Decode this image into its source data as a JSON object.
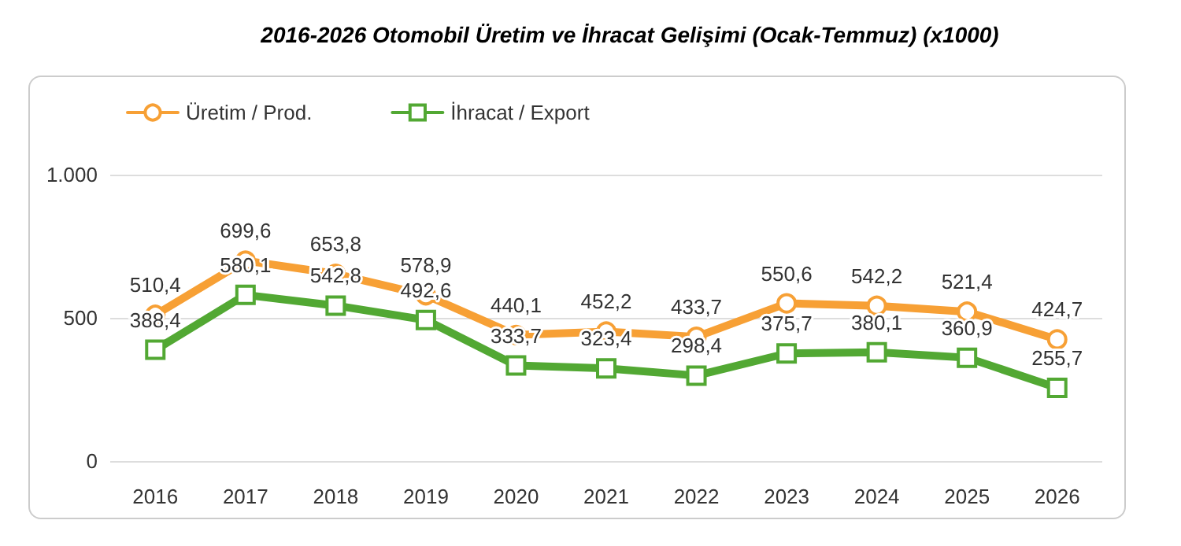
{
  "chart_data": {
    "type": "line",
    "title": "2016-2026 Otomobil Üretim ve İhracat Gelişimi (Ocak-Temmuz) (x1000)",
    "categories": [
      "2016",
      "2017",
      "2018",
      "2019",
      "2020",
      "2021",
      "2022",
      "2023",
      "2024",
      "2025",
      "2026"
    ],
    "series": [
      {
        "name": "Üretim / Prod.",
        "color": "#f7a035",
        "marker": "circle",
        "values": [
          510.4,
          699.6,
          653.8,
          578.9,
          440.1,
          452.2,
          433.7,
          550.6,
          542.2,
          521.4,
          424.7
        ],
        "value_labels": [
          "510,4",
          "699,6",
          "653,8",
          "578,9",
          "440,1",
          "452,2",
          "433,7",
          "550,6",
          "542,2",
          "521,4",
          "424,7"
        ]
      },
      {
        "name": "İhracat / Export",
        "color": "#52a833",
        "marker": "square",
        "values": [
          388.4,
          580.1,
          542.8,
          492.6,
          333.7,
          323.4,
          298.4,
          375.7,
          380.1,
          360.9,
          255.7
        ],
        "value_labels": [
          "388,4",
          "580,1",
          "542,8",
          "492,6",
          "333,7",
          "323,4",
          "298,4",
          "375,7",
          "380,1",
          "360,9",
          "255,7"
        ]
      }
    ],
    "ylim": [
      0,
      1000
    ],
    "yticks": [
      0,
      500,
      {
        "value": 1000,
        "label": "1.000"
      }
    ],
    "grid": "y",
    "legend": "top left",
    "line_style": "solid"
  }
}
